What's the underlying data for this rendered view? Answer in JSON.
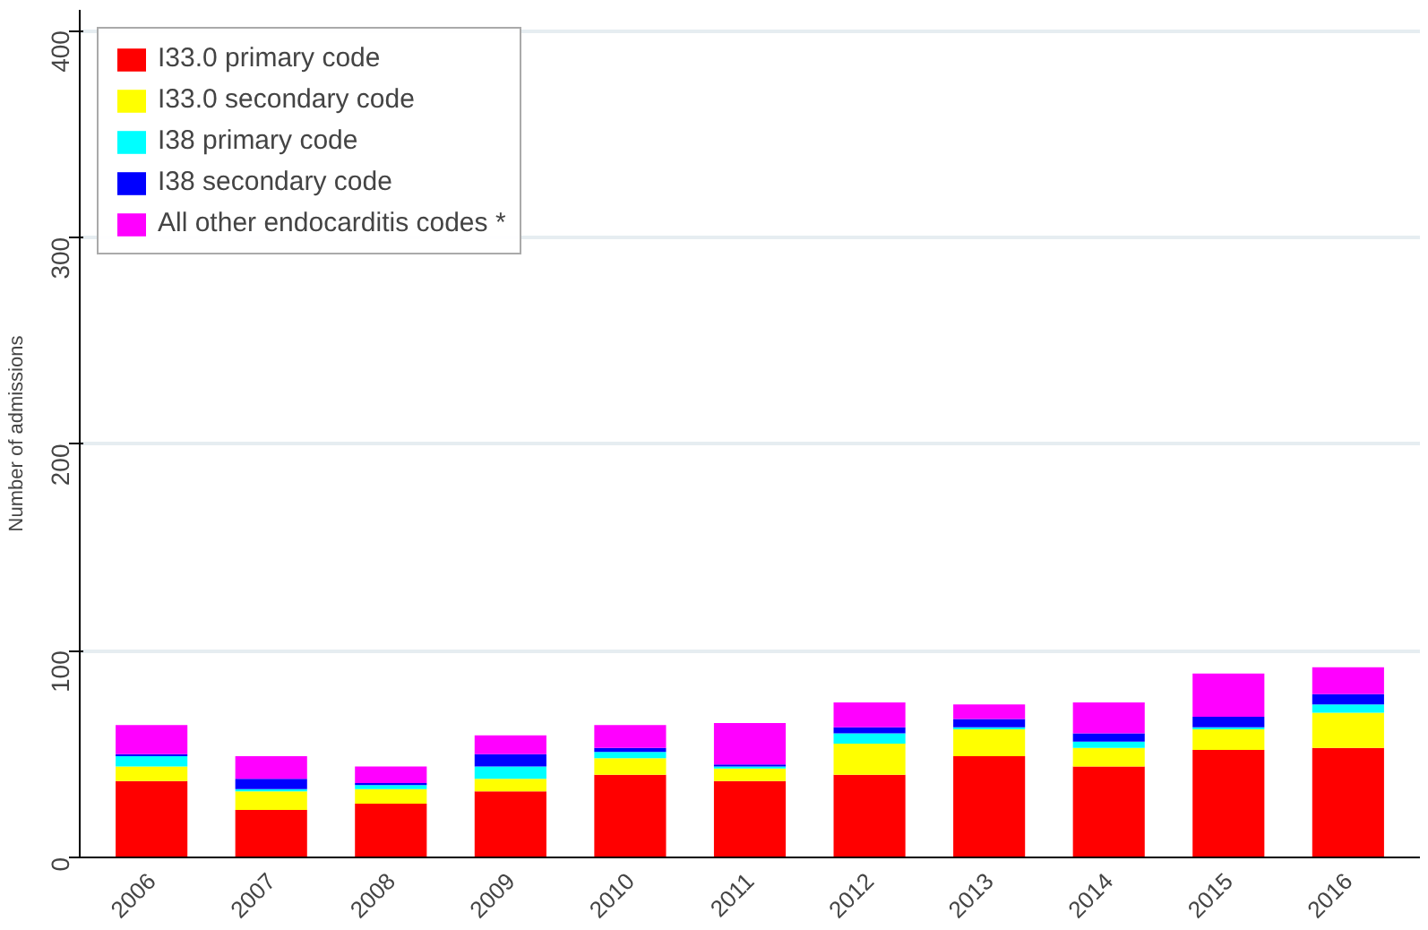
{
  "chart_data": {
    "type": "bar",
    "stacked": true,
    "ylabel": "Number of admissions",
    "categories": [
      "2006",
      "2007",
      "2008",
      "2009",
      "2010",
      "2011",
      "2012",
      "2013",
      "2014",
      "2015",
      "2016"
    ],
    "series": [
      {
        "name": "I33.0 primary code",
        "color": "#ff0000",
        "values": [
          37,
          23,
          26,
          32,
          40,
          37,
          40,
          49,
          44,
          52,
          53
        ]
      },
      {
        "name": "I33.0 secondary code",
        "color": "#ffff00",
        "values": [
          7,
          9,
          7,
          6,
          8,
          6,
          15,
          13,
          9,
          10,
          17
        ]
      },
      {
        "name": "I38 primary code",
        "color": "#00ffff",
        "values": [
          5,
          1,
          2,
          6,
          3,
          1,
          5,
          1,
          3,
          1,
          4
        ]
      },
      {
        "name": "I38 secondary code",
        "color": "#0000ff",
        "values": [
          1,
          5,
          1,
          6,
          2,
          1,
          3,
          4,
          4,
          5,
          5
        ]
      },
      {
        "name": "All other endocarditis codes *",
        "color": "#ff00ff",
        "values": [
          14,
          11,
          8,
          9,
          11,
          20,
          12,
          7,
          15,
          21,
          13
        ]
      }
    ],
    "ylim": [
      0,
      410
    ],
    "yticks": [
      0,
      100,
      200,
      300,
      400
    ],
    "grid": "y",
    "legend": "top left"
  }
}
